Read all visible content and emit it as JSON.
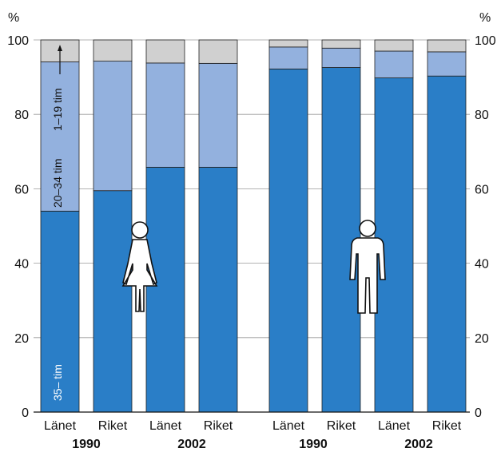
{
  "chart_data": {
    "type": "bar",
    "stacked": true,
    "y_unit_left": "%",
    "y_unit_right": "%",
    "ylim": [
      0,
      100
    ],
    "yticks": [
      0,
      20,
      40,
      60,
      80,
      100
    ],
    "grid": true,
    "categories": [
      "Länet",
      "Riket",
      "Länet",
      "Riket",
      "Länet",
      "Riket",
      "Länet",
      "Riket"
    ],
    "year_labels": [
      "1990",
      "2002",
      "1990",
      "2002"
    ],
    "groups": [
      "women",
      "men"
    ],
    "series": [
      {
        "name": "35– tim",
        "values": [
          54,
          59.5,
          65.8,
          65.8,
          92.2,
          92.6,
          89.8,
          90.3
        ],
        "color": "#2a7ec7"
      },
      {
        "name": "20–34 tim",
        "values": [
          40.1,
          34.8,
          28,
          27.9,
          5.9,
          5.2,
          7.2,
          6.5
        ],
        "color": "#93b1de"
      },
      {
        "name": "1–19 tim",
        "values": [
          5.9,
          5.7,
          6.2,
          6.3,
          1.9,
          2.2,
          3,
          3.2
        ],
        "color": "#d0d0d0"
      }
    ],
    "annotations": [
      "35– tim",
      "20–34 tim",
      "1–19 tim"
    ],
    "icons": [
      "woman-icon",
      "man-icon"
    ]
  }
}
